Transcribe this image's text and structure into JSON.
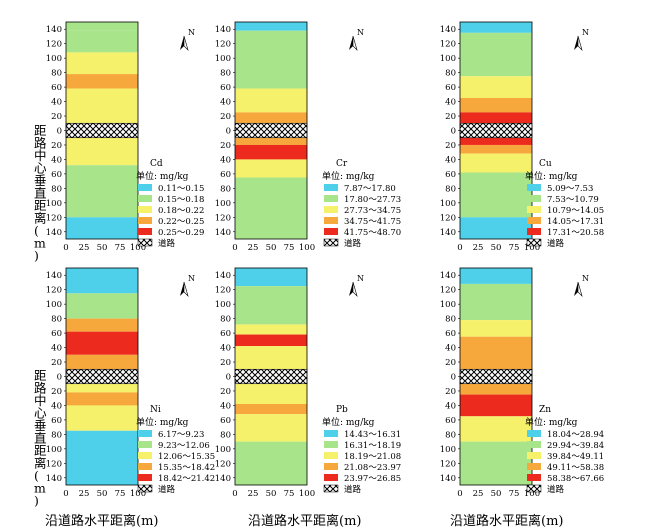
{
  "figure": {
    "ylabel": "距路中心垂直距离(m)",
    "xlabel": "沿道路水平距离(m)",
    "north_label": "N",
    "x_ticks": [
      "0",
      "25",
      "50",
      "75",
      "100"
    ],
    "y_ticks": [
      "140",
      "120",
      "100",
      "80",
      "60",
      "40",
      "20",
      "0",
      "20",
      "40",
      "60",
      "80",
      "100",
      "120",
      "140"
    ],
    "road_label": "道路",
    "unit_label": "单位: mg/kg"
  },
  "colors": {
    "class_1": "#4fd0ea",
    "class_2": "#a8e48a",
    "class_3": "#f6f16a",
    "class_4": "#f7a83c",
    "class_5": "#ec2a1e"
  },
  "chart_data": [
    {
      "type": "heatmap",
      "title": "Cd",
      "unit": "mg/kg",
      "x_range": [
        0,
        100
      ],
      "y_range": [
        -150,
        150
      ],
      "legend": [
        "0.11～0.15",
        "0.15～0.18",
        "0.18～0.22",
        "0.22～0.25",
        "0.25～0.29"
      ],
      "bands": [
        {
          "from": 150,
          "to": 138,
          "class": 2
        },
        {
          "from": 138,
          "to": 108,
          "class": 2
        },
        {
          "from": 108,
          "to": 78,
          "class": 3
        },
        {
          "from": 78,
          "to": 58,
          "class": 4
        },
        {
          "from": 58,
          "to": 10,
          "class": 3
        },
        {
          "from": -10,
          "to": -48,
          "class": 3
        },
        {
          "from": -48,
          "to": -120,
          "class": 2
        },
        {
          "from": -120,
          "to": -150,
          "class": 1
        }
      ]
    },
    {
      "type": "heatmap",
      "title": "Cr",
      "unit": "mg/kg",
      "x_range": [
        0,
        100
      ],
      "y_range": [
        -150,
        150
      ],
      "legend": [
        "7.87～17.80",
        "17.80～27.73",
        "27.73～34.75",
        "34.75～41.75",
        "41.75～48.70"
      ],
      "bands": [
        {
          "from": 150,
          "to": 138,
          "class": 1
        },
        {
          "from": 138,
          "to": 58,
          "class": 2
        },
        {
          "from": 58,
          "to": 25,
          "class": 3
        },
        {
          "from": 25,
          "to": 10,
          "class": 4
        },
        {
          "from": -10,
          "to": -20,
          "class": 4
        },
        {
          "from": -20,
          "to": -40,
          "class": 5
        },
        {
          "from": -40,
          "to": -65,
          "class": 3
        },
        {
          "from": -65,
          "to": -150,
          "class": 2
        }
      ]
    },
    {
      "type": "heatmap",
      "title": "Cu",
      "unit": "mg/kg",
      "x_range": [
        0,
        100
      ],
      "y_range": [
        -150,
        150
      ],
      "legend": [
        "5.09～7.53",
        "7.53～10.79",
        "10.79～14.05",
        "14.05～17.31",
        "17.31～20.58"
      ],
      "bands": [
        {
          "from": 150,
          "to": 135,
          "class": 1
        },
        {
          "from": 135,
          "to": 75,
          "class": 2
        },
        {
          "from": 75,
          "to": 45,
          "class": 3
        },
        {
          "from": 45,
          "to": 25,
          "class": 4
        },
        {
          "from": 25,
          "to": 10,
          "class": 5
        },
        {
          "from": -10,
          "to": -20,
          "class": 5
        },
        {
          "from": -20,
          "to": -32,
          "class": 4
        },
        {
          "from": -32,
          "to": -58,
          "class": 3
        },
        {
          "from": -58,
          "to": -120,
          "class": 2
        },
        {
          "from": -120,
          "to": -150,
          "class": 1
        }
      ]
    },
    {
      "type": "heatmap",
      "title": "Ni",
      "unit": "mg/kg",
      "x_range": [
        0,
        100
      ],
      "y_range": [
        -150,
        150
      ],
      "legend": [
        "6.17～9.23",
        "9.23～12.06",
        "12.06～15.35",
        "15.35～18.42",
        "18.42～21.42"
      ],
      "bands": [
        {
          "from": 150,
          "to": 115,
          "class": 1
        },
        {
          "from": 115,
          "to": 80,
          "class": 2
        },
        {
          "from": 80,
          "to": 62,
          "class": 4
        },
        {
          "from": 62,
          "to": 30,
          "class": 5
        },
        {
          "from": 30,
          "to": 10,
          "class": 4
        },
        {
          "from": -10,
          "to": -22,
          "class": 3
        },
        {
          "from": -22,
          "to": -40,
          "class": 4
        },
        {
          "from": -40,
          "to": -75,
          "class": 3
        },
        {
          "from": -75,
          "to": -150,
          "class": 1
        }
      ]
    },
    {
      "type": "heatmap",
      "title": "Pb",
      "unit": "mg/kg",
      "x_range": [
        0,
        100
      ],
      "y_range": [
        -150,
        150
      ],
      "legend": [
        "14.43～16.31",
        "16.31～18.19",
        "18.19～21.08",
        "21.08～23.97",
        "23.97～26.85"
      ],
      "bands": [
        {
          "from": 150,
          "to": 125,
          "class": 1
        },
        {
          "from": 125,
          "to": 72,
          "class": 2
        },
        {
          "from": 72,
          "to": 58,
          "class": 3
        },
        {
          "from": 58,
          "to": 42,
          "class": 5
        },
        {
          "from": 42,
          "to": 10,
          "class": 3
        },
        {
          "from": -10,
          "to": -38,
          "class": 3
        },
        {
          "from": -38,
          "to": -52,
          "class": 4
        },
        {
          "from": -52,
          "to": -90,
          "class": 3
        },
        {
          "from": -90,
          "to": -150,
          "class": 2
        }
      ]
    },
    {
      "type": "heatmap",
      "title": "Zn",
      "unit": "mg/kg",
      "x_range": [
        0,
        100
      ],
      "y_range": [
        -150,
        150
      ],
      "legend": [
        "18.04～28.94",
        "29.94～39.84",
        "39.84～49.11",
        "49.11～58.38",
        "58.38～67.66"
      ],
      "bands": [
        {
          "from": 150,
          "to": 128,
          "class": 1
        },
        {
          "from": 128,
          "to": 78,
          "class": 2
        },
        {
          "from": 78,
          "to": 55,
          "class": 3
        },
        {
          "from": 55,
          "to": 10,
          "class": 4
        },
        {
          "from": -10,
          "to": -25,
          "class": 4
        },
        {
          "from": -25,
          "to": -55,
          "class": 5
        },
        {
          "from": -55,
          "to": -90,
          "class": 3
        },
        {
          "from": -90,
          "to": -150,
          "class": 2
        }
      ]
    }
  ]
}
